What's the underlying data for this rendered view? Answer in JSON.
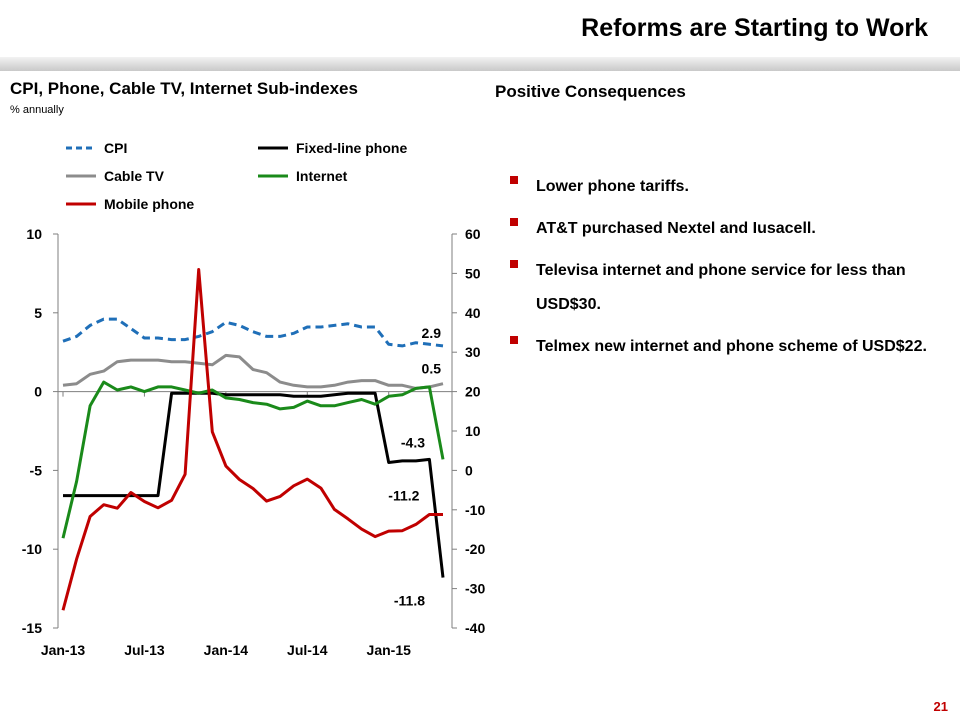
{
  "slide": {
    "title": "Reforms are Starting to Work",
    "page_number": "21",
    "chart_title": "CPI, Phone, Cable TV, Internet Sub-indexes",
    "chart_subtitle": "% annually",
    "right_title": "Positive Consequences",
    "bullets": [
      "Lower phone tariffs.",
      "AT&T purchased Nextel and Iusacell.",
      "Televisa internet and phone service for less than USD$30.",
      "Telmex new internet and phone scheme of USD$22."
    ]
  },
  "colors": {
    "cpi": "#1f6fb8",
    "fixed": "#000000",
    "cable": "#8c8c8c",
    "internet": "#1a8a1a",
    "mobile": "#c00000",
    "bullet": "#c00000"
  },
  "chart_data": {
    "type": "line",
    "x": [
      "Jan-13",
      "Feb-13",
      "Mar-13",
      "Apr-13",
      "May-13",
      "Jun-13",
      "Jul-13",
      "Aug-13",
      "Sep-13",
      "Oct-13",
      "Nov-13",
      "Dec-13",
      "Jan-14",
      "Feb-14",
      "Mar-14",
      "Apr-14",
      "May-14",
      "Jun-14",
      "Jul-14",
      "Aug-14",
      "Sep-14",
      "Oct-14",
      "Nov-14",
      "Dec-14",
      "Jan-15",
      "Feb-15",
      "Mar-15",
      "Apr-15",
      "May-15"
    ],
    "x_tick_labels": [
      "Jan-13",
      "Jul-13",
      "Jan-14",
      "Jul-14",
      "Jan-15"
    ],
    "y_left": {
      "range": [
        -15,
        10
      ],
      "ticks": [
        "10",
        "5",
        "0",
        "-5",
        "-10",
        "-15"
      ]
    },
    "y_right": {
      "range": [
        -40,
        60
      ],
      "ticks": [
        "60",
        "50",
        "40",
        "30",
        "20",
        "10",
        "0",
        "-10",
        "-20",
        "-30",
        "-40"
      ]
    },
    "legend": [
      "CPI",
      "Fixed-line phone",
      "Cable TV",
      "Internet",
      "Mobile phone"
    ],
    "series": [
      {
        "name": "CPI",
        "axis": "left",
        "style": "dashed",
        "color_key": "cpi",
        "values": [
          3.2,
          3.5,
          4.2,
          4.6,
          4.6,
          4.0,
          3.4,
          3.4,
          3.3,
          3.3,
          3.5,
          3.8,
          4.4,
          4.2,
          3.8,
          3.5,
          3.5,
          3.7,
          4.1,
          4.1,
          4.2,
          4.3,
          4.1,
          4.1,
          3.0,
          2.9,
          3.1,
          3.0,
          2.9
        ]
      },
      {
        "name": "Fixed-line phone",
        "axis": "left",
        "style": "solid",
        "color_key": "fixed",
        "values": [
          -6.6,
          -6.6,
          -6.6,
          -6.6,
          -6.6,
          -6.6,
          -6.6,
          -6.6,
          -0.1,
          -0.1,
          -0.1,
          -0.1,
          -0.2,
          -0.2,
          -0.2,
          -0.2,
          -0.2,
          -0.3,
          -0.3,
          -0.3,
          -0.2,
          -0.1,
          -0.1,
          -0.1,
          -4.5,
          -4.4,
          -4.4,
          -4.3,
          -11.8
        ]
      },
      {
        "name": "Cable TV",
        "axis": "left",
        "style": "solid",
        "color_key": "cable",
        "values": [
          0.4,
          0.5,
          1.1,
          1.3,
          1.9,
          2.0,
          2.0,
          2.0,
          1.9,
          1.9,
          1.8,
          1.7,
          2.3,
          2.2,
          1.4,
          1.2,
          0.6,
          0.4,
          0.3,
          0.3,
          0.4,
          0.6,
          0.7,
          0.7,
          0.4,
          0.4,
          0.2,
          0.3,
          0.5
        ]
      },
      {
        "name": "Internet",
        "axis": "left",
        "style": "solid",
        "color_key": "internet",
        "values": [
          -9.3,
          -5.7,
          -0.9,
          0.6,
          0.1,
          0.3,
          0.0,
          0.3,
          0.3,
          0.1,
          -0.1,
          0.1,
          -0.4,
          -0.5,
          -0.7,
          -0.8,
          -1.1,
          -1.0,
          -0.6,
          -0.9,
          -0.9,
          -0.7,
          -0.5,
          -0.8,
          -0.3,
          -0.2,
          0.2,
          0.3,
          -4.3
        ]
      },
      {
        "name": "Mobile phone",
        "axis": "right",
        "style": "solid",
        "color_key": "mobile",
        "values": [
          -35.5,
          -22.5,
          -11.7,
          -8.7,
          -9.6,
          -5.6,
          -7.9,
          -9.5,
          -7.6,
          -1.0,
          51.0,
          9.8,
          1.1,
          -2.3,
          -4.6,
          -7.8,
          -6.6,
          -3.9,
          -2.2,
          -4.5,
          -9.9,
          -12.3,
          -14.9,
          -16.8,
          -15.4,
          -15.3,
          -13.7,
          -11.2,
          -11.2
        ]
      }
    ],
    "data_labels": [
      {
        "text": "2.9",
        "series": "CPI",
        "index": 28
      },
      {
        "text": "0.5",
        "series": "Cable TV",
        "index": 28
      },
      {
        "text": "-4.3",
        "series": "Internet",
        "index": 28
      },
      {
        "text": "-11.2",
        "series": "Mobile phone",
        "index": 27
      },
      {
        "text": "-11.8",
        "series": "Fixed-line phone",
        "index": 28
      }
    ]
  }
}
